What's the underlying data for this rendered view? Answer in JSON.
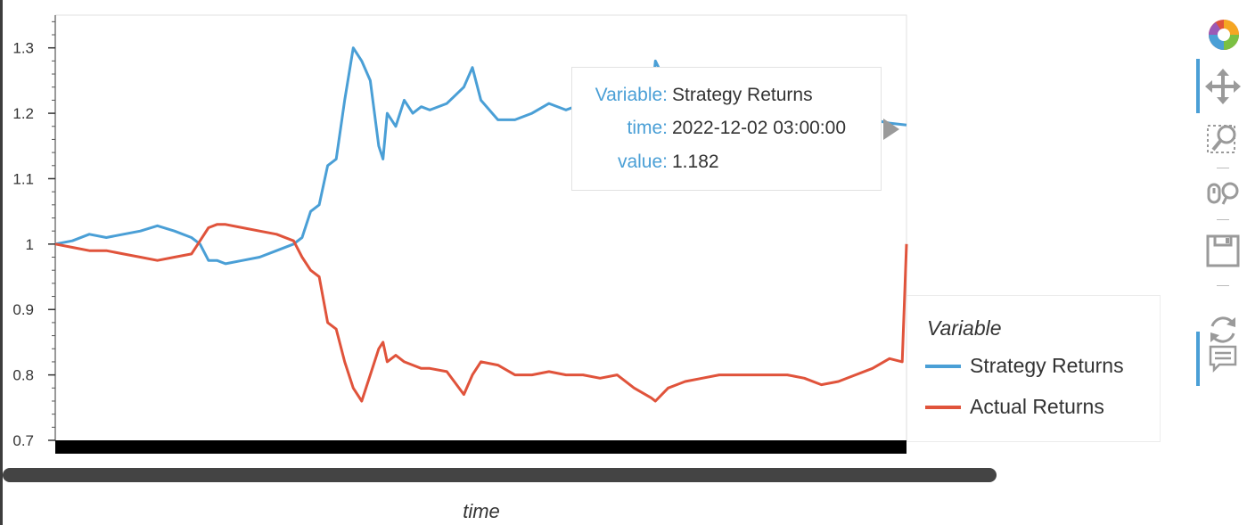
{
  "chart_data": {
    "type": "line",
    "xlabel": "time",
    "ylabel": "",
    "ylim": [
      0.7,
      1.35
    ],
    "yticks": [
      0.7,
      0.8,
      0.9,
      1.0,
      1.1,
      1.2,
      1.3
    ],
    "ytick_labels": [
      "0.7",
      "0.8",
      "0.9",
      "1",
      "1.1",
      "1.2",
      "1.3"
    ],
    "x_index_range": [
      0,
      100
    ],
    "series": [
      {
        "name": "Strategy Returns",
        "color": "#4a9fd6",
        "x": [
          0,
          2,
          4,
          6,
          8,
          10,
          12,
          14,
          16,
          17,
          18,
          19,
          20,
          22,
          24,
          26,
          28,
          29,
          30,
          31,
          32,
          33,
          34,
          35,
          36,
          37,
          38,
          38.5,
          39,
          40,
          41,
          42,
          43,
          44,
          46,
          48,
          49,
          50,
          52,
          54,
          56,
          58,
          60,
          62,
          64,
          66,
          68,
          70,
          70.5,
          72,
          74,
          76,
          78,
          80,
          82,
          84,
          86,
          88,
          90,
          92,
          94,
          96,
          98,
          100
        ],
        "values": [
          1.0,
          1.005,
          1.015,
          1.01,
          1.015,
          1.02,
          1.028,
          1.02,
          1.01,
          1.0,
          0.975,
          0.975,
          0.97,
          0.975,
          0.98,
          0.99,
          1.0,
          1.01,
          1.05,
          1.06,
          1.12,
          1.13,
          1.22,
          1.3,
          1.28,
          1.25,
          1.15,
          1.13,
          1.2,
          1.18,
          1.22,
          1.2,
          1.21,
          1.205,
          1.215,
          1.24,
          1.27,
          1.22,
          1.19,
          1.19,
          1.2,
          1.215,
          1.205,
          1.215,
          1.22,
          1.21,
          1.2,
          1.215,
          1.28,
          1.24,
          1.22,
          1.21,
          1.2,
          1.2,
          1.19,
          1.2,
          1.19,
          1.195,
          1.2,
          1.19,
          1.195,
          1.19,
          1.185,
          1.182
        ]
      },
      {
        "name": "Actual Returns",
        "color": "#e0533b",
        "x": [
          0,
          2,
          4,
          6,
          8,
          10,
          12,
          14,
          16,
          17,
          18,
          19,
          20,
          22,
          24,
          26,
          28,
          29,
          30,
          31,
          32,
          33,
          34,
          35,
          36,
          37,
          38,
          38.5,
          39,
          40,
          41,
          42,
          43,
          44,
          46,
          48,
          49,
          50,
          52,
          54,
          56,
          58,
          60,
          62,
          64,
          66,
          68,
          70,
          70.5,
          72,
          74,
          76,
          78,
          80,
          82,
          84,
          86,
          88,
          90,
          92,
          94,
          96,
          98,
          99.5,
          100
        ],
        "values": [
          1.0,
          0.995,
          0.99,
          0.99,
          0.985,
          0.98,
          0.975,
          0.98,
          0.985,
          1.005,
          1.025,
          1.03,
          1.03,
          1.025,
          1.02,
          1.015,
          1.005,
          0.98,
          0.96,
          0.95,
          0.88,
          0.87,
          0.82,
          0.78,
          0.76,
          0.8,
          0.84,
          0.85,
          0.82,
          0.83,
          0.82,
          0.815,
          0.81,
          0.81,
          0.805,
          0.77,
          0.8,
          0.82,
          0.815,
          0.8,
          0.8,
          0.805,
          0.8,
          0.8,
          0.795,
          0.8,
          0.78,
          0.765,
          0.76,
          0.78,
          0.79,
          0.795,
          0.8,
          0.8,
          0.8,
          0.8,
          0.8,
          0.795,
          0.785,
          0.79,
          0.8,
          0.81,
          0.825,
          0.82,
          1.0
        ]
      }
    ],
    "legend": {
      "title": "Variable",
      "position": "right",
      "items": [
        {
          "label": "Strategy Returns",
          "color": "#4a9fd6"
        },
        {
          "label": "Actual Returns",
          "color": "#e0533b"
        }
      ]
    },
    "grid": false
  },
  "tooltip": {
    "rows": [
      {
        "key": "Variable:",
        "value": "Strategy Returns"
      },
      {
        "key": "time:",
        "value": "2022-12-02 03:00:00"
      },
      {
        "key": "value:",
        "value": "1.182"
      }
    ]
  },
  "toolbar": {
    "tools": [
      "bokeh-logo-icon",
      "pan-icon",
      "box-zoom-icon",
      "wheel-zoom-icon",
      "save-icon",
      "reset-icon",
      "hover-icon"
    ]
  }
}
